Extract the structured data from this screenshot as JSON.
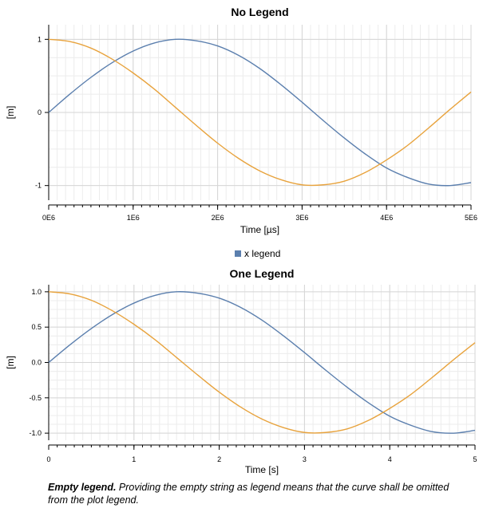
{
  "chart_data": [
    {
      "type": "line",
      "title": "No Legend",
      "xlabel": "Time [µs]",
      "ylabel": "[m]",
      "xlim": [
        0,
        5000000
      ],
      "ylim": [
        -1.2,
        1.2
      ],
      "xticks": [
        0,
        1000000,
        2000000,
        3000000,
        4000000,
        5000000
      ],
      "xtick_labels": [
        "0E6",
        "1E6",
        "2E6",
        "3E6",
        "4E6",
        "5E6"
      ],
      "yticks": [
        1,
        0,
        -1
      ],
      "ytick_labels": [
        "1",
        "0",
        "-1"
      ],
      "grid": true,
      "legend": [],
      "series": [
        {
          "color": "#5b7fae",
          "x": [
            0,
            250000,
            500000,
            750000,
            1000000,
            1250000,
            1500000,
            1750000,
            2000000,
            2250000,
            2500000,
            2750000,
            3000000,
            3250000,
            3500000,
            3750000,
            4000000,
            4250000,
            4500000,
            4750000,
            5000000
          ],
          "y": [
            0,
            0.25,
            0.48,
            0.68,
            0.84,
            0.95,
            1.0,
            0.98,
            0.91,
            0.78,
            0.6,
            0.38,
            0.14,
            -0.11,
            -0.35,
            -0.57,
            -0.76,
            -0.89,
            -0.98,
            -1.0,
            -0.96
          ]
        },
        {
          "color": "#e8a33d",
          "x": [
            0,
            250000,
            500000,
            750000,
            1000000,
            1250000,
            1500000,
            1750000,
            2000000,
            2250000,
            2500000,
            2750000,
            3000000,
            3250000,
            3500000,
            3750000,
            4000000,
            4250000,
            4500000,
            4750000,
            5000000
          ],
          "y": [
            1.0,
            0.97,
            0.88,
            0.73,
            0.54,
            0.32,
            0.07,
            -0.18,
            -0.42,
            -0.63,
            -0.8,
            -0.92,
            -0.99,
            -0.99,
            -0.94,
            -0.82,
            -0.65,
            -0.45,
            -0.21,
            0.04,
            0.28
          ]
        }
      ]
    },
    {
      "type": "line",
      "title": "One Legend",
      "xlabel": "Time [s]",
      "ylabel": "[m]",
      "xlim": [
        0,
        5
      ],
      "ylim": [
        -1.1,
        1.1
      ],
      "xticks": [
        0,
        1,
        2,
        3,
        4,
        5
      ],
      "xtick_labels": [
        "0",
        "1",
        "2",
        "3",
        "4",
        "5"
      ],
      "yticks": [
        1.0,
        0.5,
        0.0,
        -0.5,
        -1.0
      ],
      "ytick_labels": [
        "1.0",
        "0.5",
        "0.0",
        "-0.5",
        "-1.0"
      ],
      "grid": true,
      "legend_position": "top-center",
      "legend": [
        {
          "label": "x legend",
          "color": "#5b7fae"
        }
      ],
      "series": [
        {
          "name": "x legend",
          "color": "#5b7fae",
          "x": [
            0,
            0.25,
            0.5,
            0.75,
            1.0,
            1.25,
            1.5,
            1.75,
            2.0,
            2.25,
            2.5,
            2.75,
            3.0,
            3.25,
            3.5,
            3.75,
            4.0,
            4.25,
            4.5,
            4.75,
            5.0
          ],
          "y": [
            0,
            0.25,
            0.48,
            0.68,
            0.84,
            0.95,
            1.0,
            0.98,
            0.91,
            0.78,
            0.6,
            0.38,
            0.14,
            -0.11,
            -0.35,
            -0.57,
            -0.76,
            -0.89,
            -0.98,
            -1.0,
            -0.96
          ]
        },
        {
          "color": "#e8a33d",
          "x": [
            0,
            0.25,
            0.5,
            0.75,
            1.0,
            1.25,
            1.5,
            1.75,
            2.0,
            2.25,
            2.5,
            2.75,
            3.0,
            3.25,
            3.5,
            3.75,
            4.0,
            4.25,
            4.5,
            4.75,
            5.0
          ],
          "y": [
            1.0,
            0.97,
            0.88,
            0.73,
            0.54,
            0.32,
            0.07,
            -0.18,
            -0.42,
            -0.63,
            -0.8,
            -0.92,
            -0.99,
            -0.99,
            -0.94,
            -0.82,
            -0.65,
            -0.45,
            -0.21,
            0.04,
            0.28
          ]
        }
      ]
    }
  ],
  "caption": {
    "bold": "Empty legend.",
    "text": " Providing the empty string as legend means that the curve shall be omitted from the plot legend."
  }
}
